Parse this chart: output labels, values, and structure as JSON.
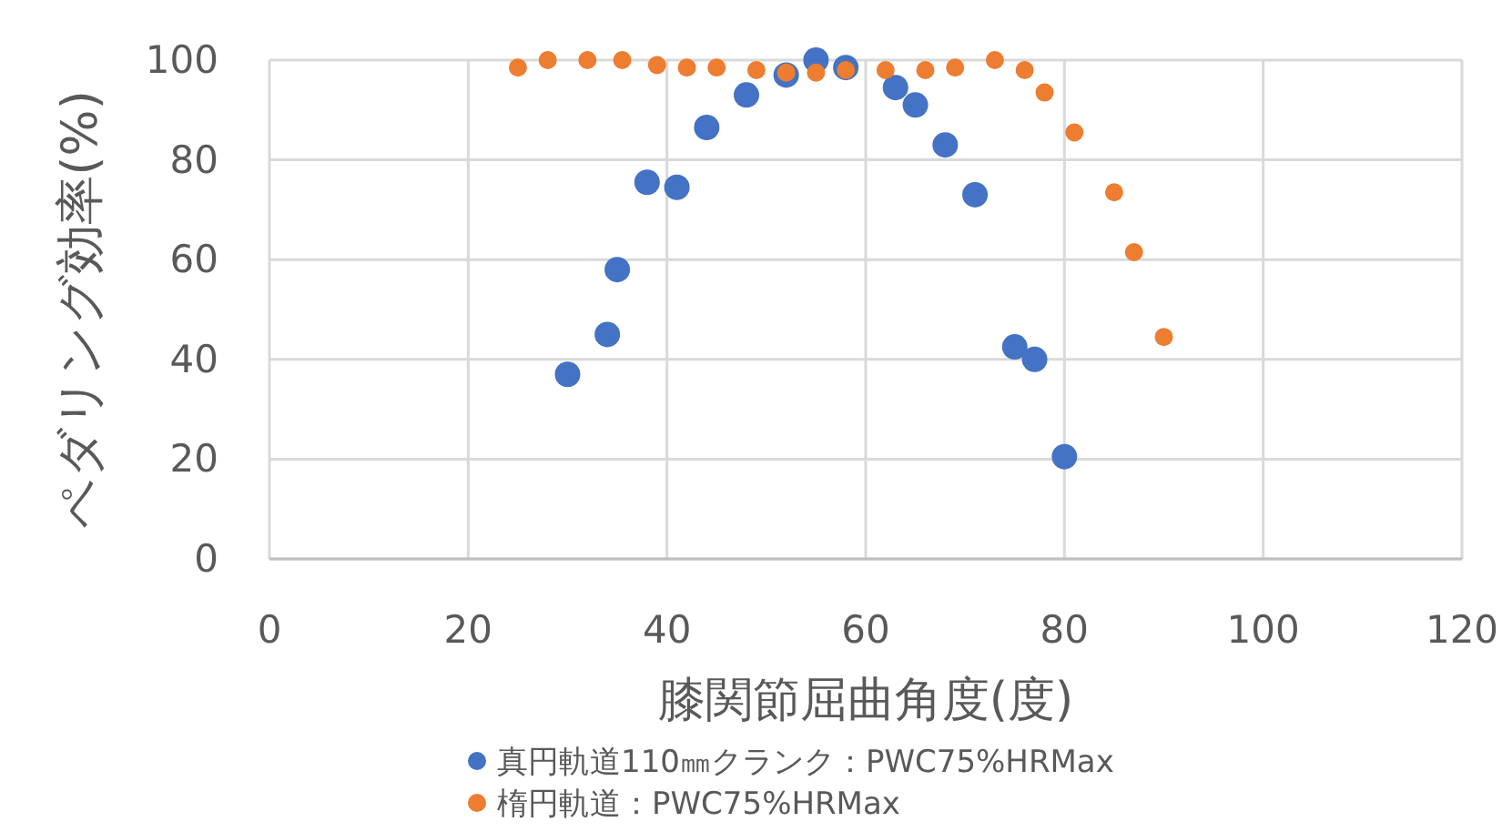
{
  "chart_data": {
    "type": "scatter",
    "xlabel": "膝関節屈曲角度(度)",
    "ylabel": "ペダリング効率(%)",
    "xlim": [
      0,
      120
    ],
    "xticks": [
      0,
      20,
      40,
      60,
      80,
      100,
      120
    ],
    "ylim": [
      0,
      100
    ],
    "yticks": [
      0,
      20,
      40,
      60,
      80,
      100
    ],
    "grid": true,
    "legend": "bottom",
    "marker": "circle",
    "series": [
      {
        "name": "真円軌道110㎜クランク：PWC75%HRMax",
        "color": "#4472c4",
        "x": [
          30,
          34,
          35,
          38,
          41,
          44,
          48,
          52,
          55,
          58,
          63,
          65,
          68,
          71,
          75,
          77,
          80
        ],
        "values": [
          37,
          45,
          58,
          75.5,
          74.5,
          86.5,
          93,
          97,
          100,
          98.5,
          94.5,
          91,
          83,
          73,
          42.5,
          40,
          20.5
        ]
      },
      {
        "name": "楕円軌道：PWC75%HRMax",
        "color": "#ed7d31",
        "x": [
          25,
          28,
          32,
          35.5,
          39,
          42,
          45,
          49,
          52,
          55,
          58,
          62,
          66,
          69,
          73,
          76,
          78,
          81,
          85,
          87,
          90
        ],
        "values": [
          98.5,
          100,
          100,
          100,
          99,
          98.5,
          98.5,
          98,
          97.5,
          97.5,
          98,
          98,
          98,
          98.5,
          100,
          98,
          93.5,
          85.5,
          73.5,
          61.5,
          44.5
        ]
      }
    ]
  }
}
